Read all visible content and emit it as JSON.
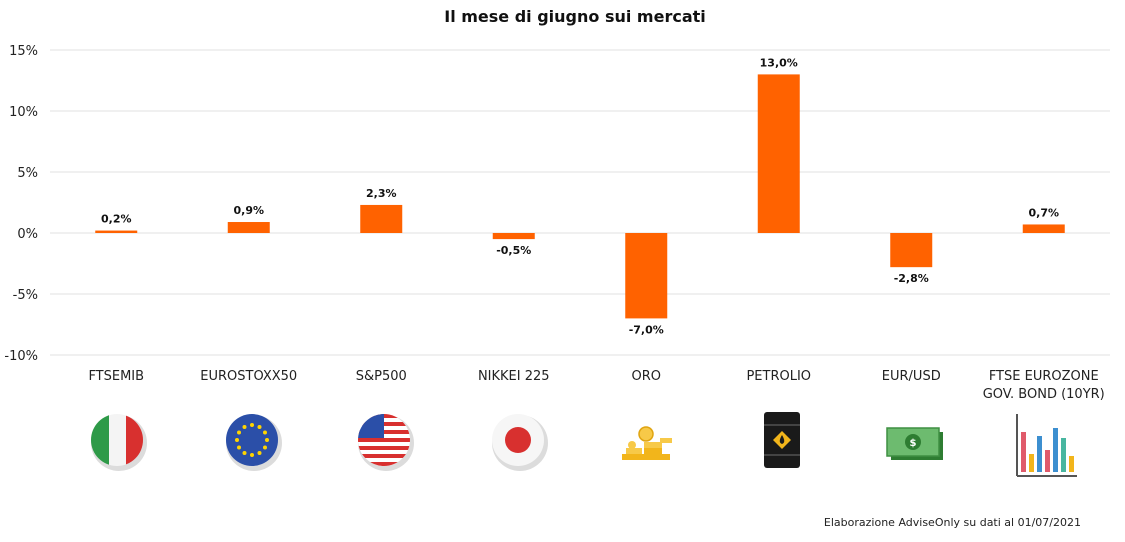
{
  "chart_data": {
    "type": "bar",
    "title": "Il mese di giugno sui mercati",
    "categories": [
      "FTSEMIB",
      "EUROSTOXX50",
      "S&P500",
      "NIKKEI 225",
      "ORO",
      "PETROLIO",
      "EUR/USD",
      "FTSE EUROZONE GOV. BOND (10YR)"
    ],
    "category_lines": [
      [
        "FTSEMIB"
      ],
      [
        "EUROSTOXX50"
      ],
      [
        "S&P500"
      ],
      [
        "NIKKEI 225"
      ],
      [
        "ORO"
      ],
      [
        "PETROLIO"
      ],
      [
        "EUR/USD"
      ],
      [
        "FTSE EUROZONE",
        "GOV. BOND (10YR)"
      ]
    ],
    "values": [
      0.2,
      0.9,
      2.3,
      -0.5,
      -7.0,
      13.0,
      -2.8,
      0.7
    ],
    "data_labels": [
      "0,2%",
      "0,9%",
      "2,3%",
      "-0,5%",
      "-7,0%",
      "13,0%",
      "-2,8%",
      "0,7%"
    ],
    "ylim": [
      -10,
      15
    ],
    "yticks": [
      15,
      10,
      5,
      0,
      -5,
      -10
    ],
    "ytick_labels": [
      "15%",
      "10%",
      "5%",
      "0%",
      "-5%",
      "-10%"
    ],
    "xlabel": "",
    "ylabel": "",
    "grid": true,
    "bar_color": "#ff6200"
  },
  "icons": [
    "italy-flag-icon",
    "eu-flag-icon",
    "usa-flag-icon",
    "japan-flag-icon",
    "gold-coins-icon",
    "oil-barrel-icon",
    "banknotes-icon",
    "bar-chart-icon"
  ],
  "source": "Elaborazione AdviseOnly su dati al 01/07/2021"
}
